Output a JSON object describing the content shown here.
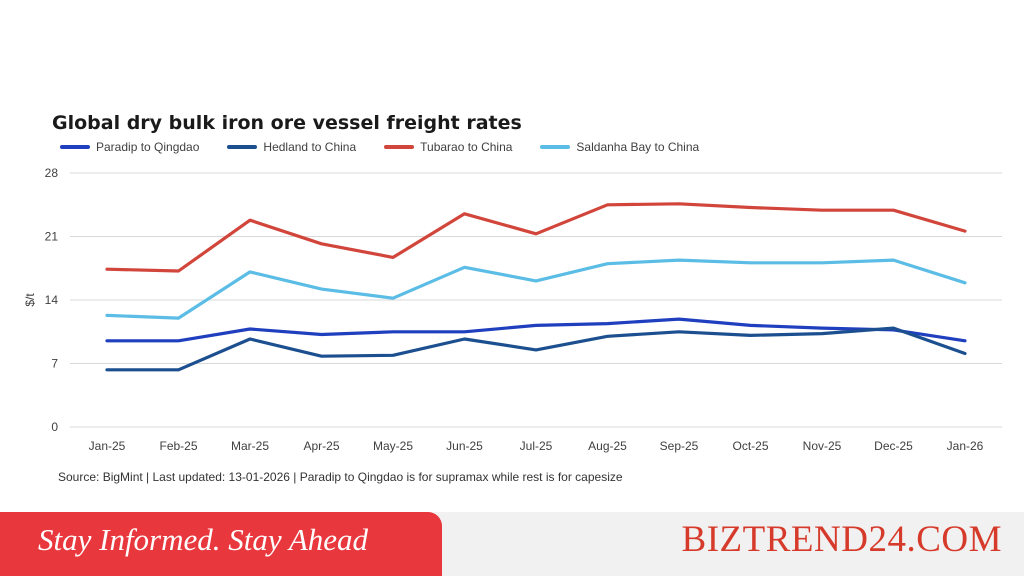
{
  "chart_data": {
    "type": "line",
    "title": "Global dry bulk iron ore vessel freight rates",
    "ylabel": "$/t",
    "xlabel": "",
    "ylim": [
      0,
      28
    ],
    "yticks": [
      0,
      7,
      14,
      21,
      28
    ],
    "grid": true,
    "legend_position": "top-left",
    "categories": [
      "Jan-25",
      "Feb-25",
      "Mar-25",
      "Apr-25",
      "May-25",
      "Jun-25",
      "Jul-25",
      "Aug-25",
      "Sep-25",
      "Oct-25",
      "Nov-25",
      "Dec-25",
      "Jan-26"
    ],
    "series": [
      {
        "name": "Paradip to Qingdao",
        "color": "#1f3fbf",
        "values": [
          9.5,
          9.5,
          10.8,
          10.2,
          10.5,
          10.5,
          11.2,
          11.4,
          11.9,
          11.2,
          10.9,
          10.7,
          9.5
        ]
      },
      {
        "name": "Hedland to China",
        "color": "#1c4f8f",
        "values": [
          6.3,
          6.3,
          9.7,
          7.8,
          7.9,
          9.7,
          8.5,
          10.0,
          10.5,
          10.1,
          10.3,
          10.9,
          8.1
        ]
      },
      {
        "name": "Tubarao to China",
        "color": "#d1453b",
        "values": [
          17.4,
          17.2,
          22.8,
          20.2,
          18.7,
          23.5,
          21.3,
          24.5,
          24.6,
          24.2,
          23.9,
          23.9,
          21.6
        ]
      },
      {
        "name": "Saldanha Bay to China",
        "color": "#5bbde5",
        "values": [
          12.3,
          12.0,
          17.1,
          15.2,
          14.2,
          17.6,
          16.1,
          18.0,
          18.4,
          18.1,
          18.1,
          18.4,
          15.9
        ]
      }
    ]
  },
  "source_note": "Source: BigMint | Last updated: 13-01-2026 | Paradip to Qingdao is for supramax while rest is for capesize",
  "footer": {
    "tagline": "Stay Informed. Stay Ahead",
    "brand": "BIZTREND24.COM"
  }
}
